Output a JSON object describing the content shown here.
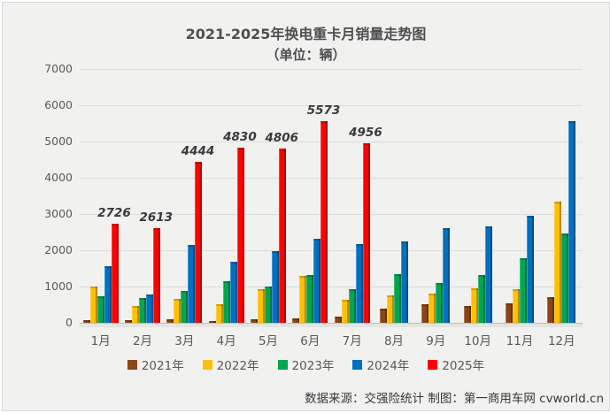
{
  "page": {
    "background": "#f1f1f0",
    "border_color": "#d8d8d8",
    "grid_color": "#dcdcdc",
    "text_color": "#595959"
  },
  "title": {
    "line1": "2021-2025年换电重卡月销量走势图",
    "line2": "（单位：辆）"
  },
  "footer": {
    "source": "数据来源：交强险统计 制图：第一商用车网 cvworld.cn"
  },
  "chart_data": {
    "type": "bar",
    "title": "2021-2025年换电重卡月销量走势图",
    "subtitle": "（单位：辆）",
    "categories": [
      "1月",
      "2月",
      "3月",
      "4月",
      "5月",
      "6月",
      "7月",
      "8月",
      "9月",
      "10月",
      "11月",
      "12月"
    ],
    "series": [
      {
        "name": "2021年",
        "color": "#8B4513",
        "values": [
          70,
          80,
          90,
          60,
          110,
          130,
          180,
          390,
          520,
          460,
          540,
          720
        ]
      },
      {
        "name": "2022年",
        "color": "#FFC000",
        "values": [
          1010,
          460,
          655,
          525,
          935,
          1300,
          640,
          750,
          800,
          950,
          935,
          3350
        ]
      },
      {
        "name": "2023年",
        "color": "#00A550",
        "values": [
          745,
          680,
          870,
          1150,
          1000,
          1310,
          920,
          1350,
          1090,
          1320,
          1775,
          2470
        ]
      },
      {
        "name": "2024年",
        "color": "#0070C0",
        "values": [
          1550,
          770,
          2150,
          1695,
          1970,
          2310,
          2160,
          2250,
          2610,
          2670,
          2950,
          5570
        ]
      },
      {
        "name": "2025年",
        "color": "#FF0000",
        "data_labels": true,
        "values": [
          2726,
          2613,
          4444,
          4830,
          4806,
          5573,
          4956,
          null,
          null,
          null,
          null,
          null
        ]
      }
    ],
    "labeled_values": [
      2726,
      2613,
      4444,
      4830,
      4806,
      5573,
      4956
    ],
    "ylim": [
      0,
      7000
    ],
    "ytick_step": 1000,
    "grid": true,
    "legend_position": "bottom"
  }
}
